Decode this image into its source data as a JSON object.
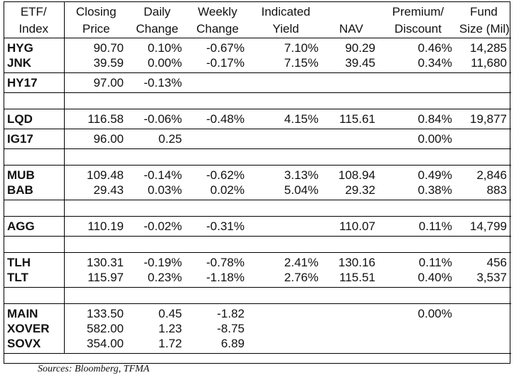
{
  "header": {
    "col1": [
      "ETF/",
      "Index"
    ],
    "col2": [
      "Closing",
      "Price"
    ],
    "col3": [
      "Daily",
      "Change"
    ],
    "col4": [
      "Weekly",
      "Change"
    ],
    "col5": [
      "Indicated",
      "Yield"
    ],
    "col6": [
      "",
      "NAV"
    ],
    "col7": [
      "Premium/",
      "Discount"
    ],
    "col8": [
      "Fund",
      "Size (Mil)"
    ]
  },
  "groups": [
    [
      [
        "HYG",
        "90.70",
        "0.10%",
        "-0.67%",
        "7.10%",
        "90.29",
        "0.46%",
        "14,285"
      ],
      [
        "JNK",
        "39.59",
        "0.00%",
        "-0.17%",
        "7.15%",
        "39.45",
        "0.34%",
        "11,680"
      ]
    ],
    [
      [
        "HY17",
        "97.00",
        "-0.13%",
        "",
        "",
        "",
        "",
        ""
      ]
    ],
    "gap",
    [
      [
        "LQD",
        "116.58",
        "-0.06%",
        "-0.48%",
        "4.15%",
        "115.61",
        "0.84%",
        "19,877"
      ]
    ],
    [
      [
        "IG17",
        "96.00",
        "0.25",
        "",
        "",
        "",
        "0.00%",
        ""
      ]
    ],
    "gap",
    [
      [
        "MUB",
        "109.48",
        "-0.14%",
        "-0.62%",
        "3.13%",
        "108.94",
        "0.49%",
        "2,846"
      ],
      [
        "BAB",
        "29.43",
        "0.03%",
        "0.02%",
        "5.04%",
        "29.32",
        "0.38%",
        "883"
      ]
    ],
    "gap",
    [
      [
        "AGG",
        "110.19",
        "-0.02%",
        "-0.31%",
        "",
        "110.07",
        "0.11%",
        "14,799"
      ]
    ],
    "gap",
    [
      [
        "TLH",
        "130.31",
        "-0.19%",
        "-0.78%",
        "2.41%",
        "130.16",
        "0.11%",
        "456"
      ],
      [
        "TLT",
        "115.97",
        "0.23%",
        "-1.18%",
        "2.76%",
        "115.51",
        "0.40%",
        "3,537"
      ]
    ],
    "gap",
    [
      [
        "MAIN",
        "133.50",
        "0.45",
        "-1.82",
        "",
        "",
        "0.00%",
        ""
      ],
      [
        "XOVER",
        "582.00",
        "1.23",
        "-8.75",
        "",
        "",
        "",
        ""
      ],
      [
        "SOVX",
        "354.00",
        "1.72",
        "6.89",
        "",
        "",
        "",
        ""
      ]
    ]
  ],
  "source": "Sources: Bloomberg, TFMA"
}
